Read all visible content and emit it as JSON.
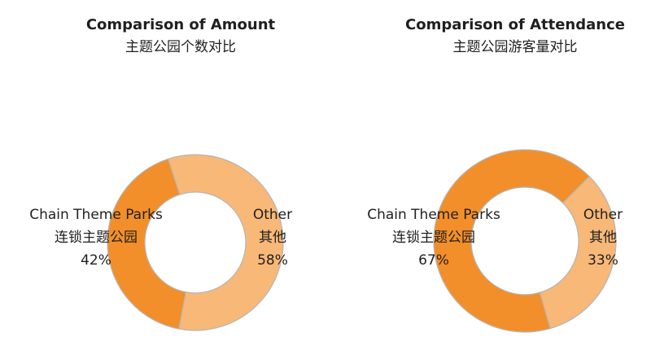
{
  "chart_data": [
    {
      "type": "pie",
      "title": "Comparison of Amount",
      "subtitle": "主题公园个数对比",
      "slices": [
        {
          "label": "Chain Theme Parks",
          "label_cn": "连锁主题公园",
          "value": 42,
          "display": "42%",
          "color": "#f28f2a"
        },
        {
          "label": "Other",
          "label_cn": "其他",
          "value": 58,
          "display": "58%",
          "color": "#f8b878"
        }
      ]
    },
    {
      "type": "pie",
      "title": "Comparison of Attendance",
      "subtitle": "主题公园游客量对比",
      "slices": [
        {
          "label": "Chain Theme Parks",
          "label_cn": "连锁主题公园",
          "value": 67,
          "display": "67%",
          "color": "#f28f2a"
        },
        {
          "label": "Other",
          "label_cn": "其他",
          "value": 33,
          "display": "33%",
          "color": "#f8b878"
        }
      ]
    }
  ]
}
